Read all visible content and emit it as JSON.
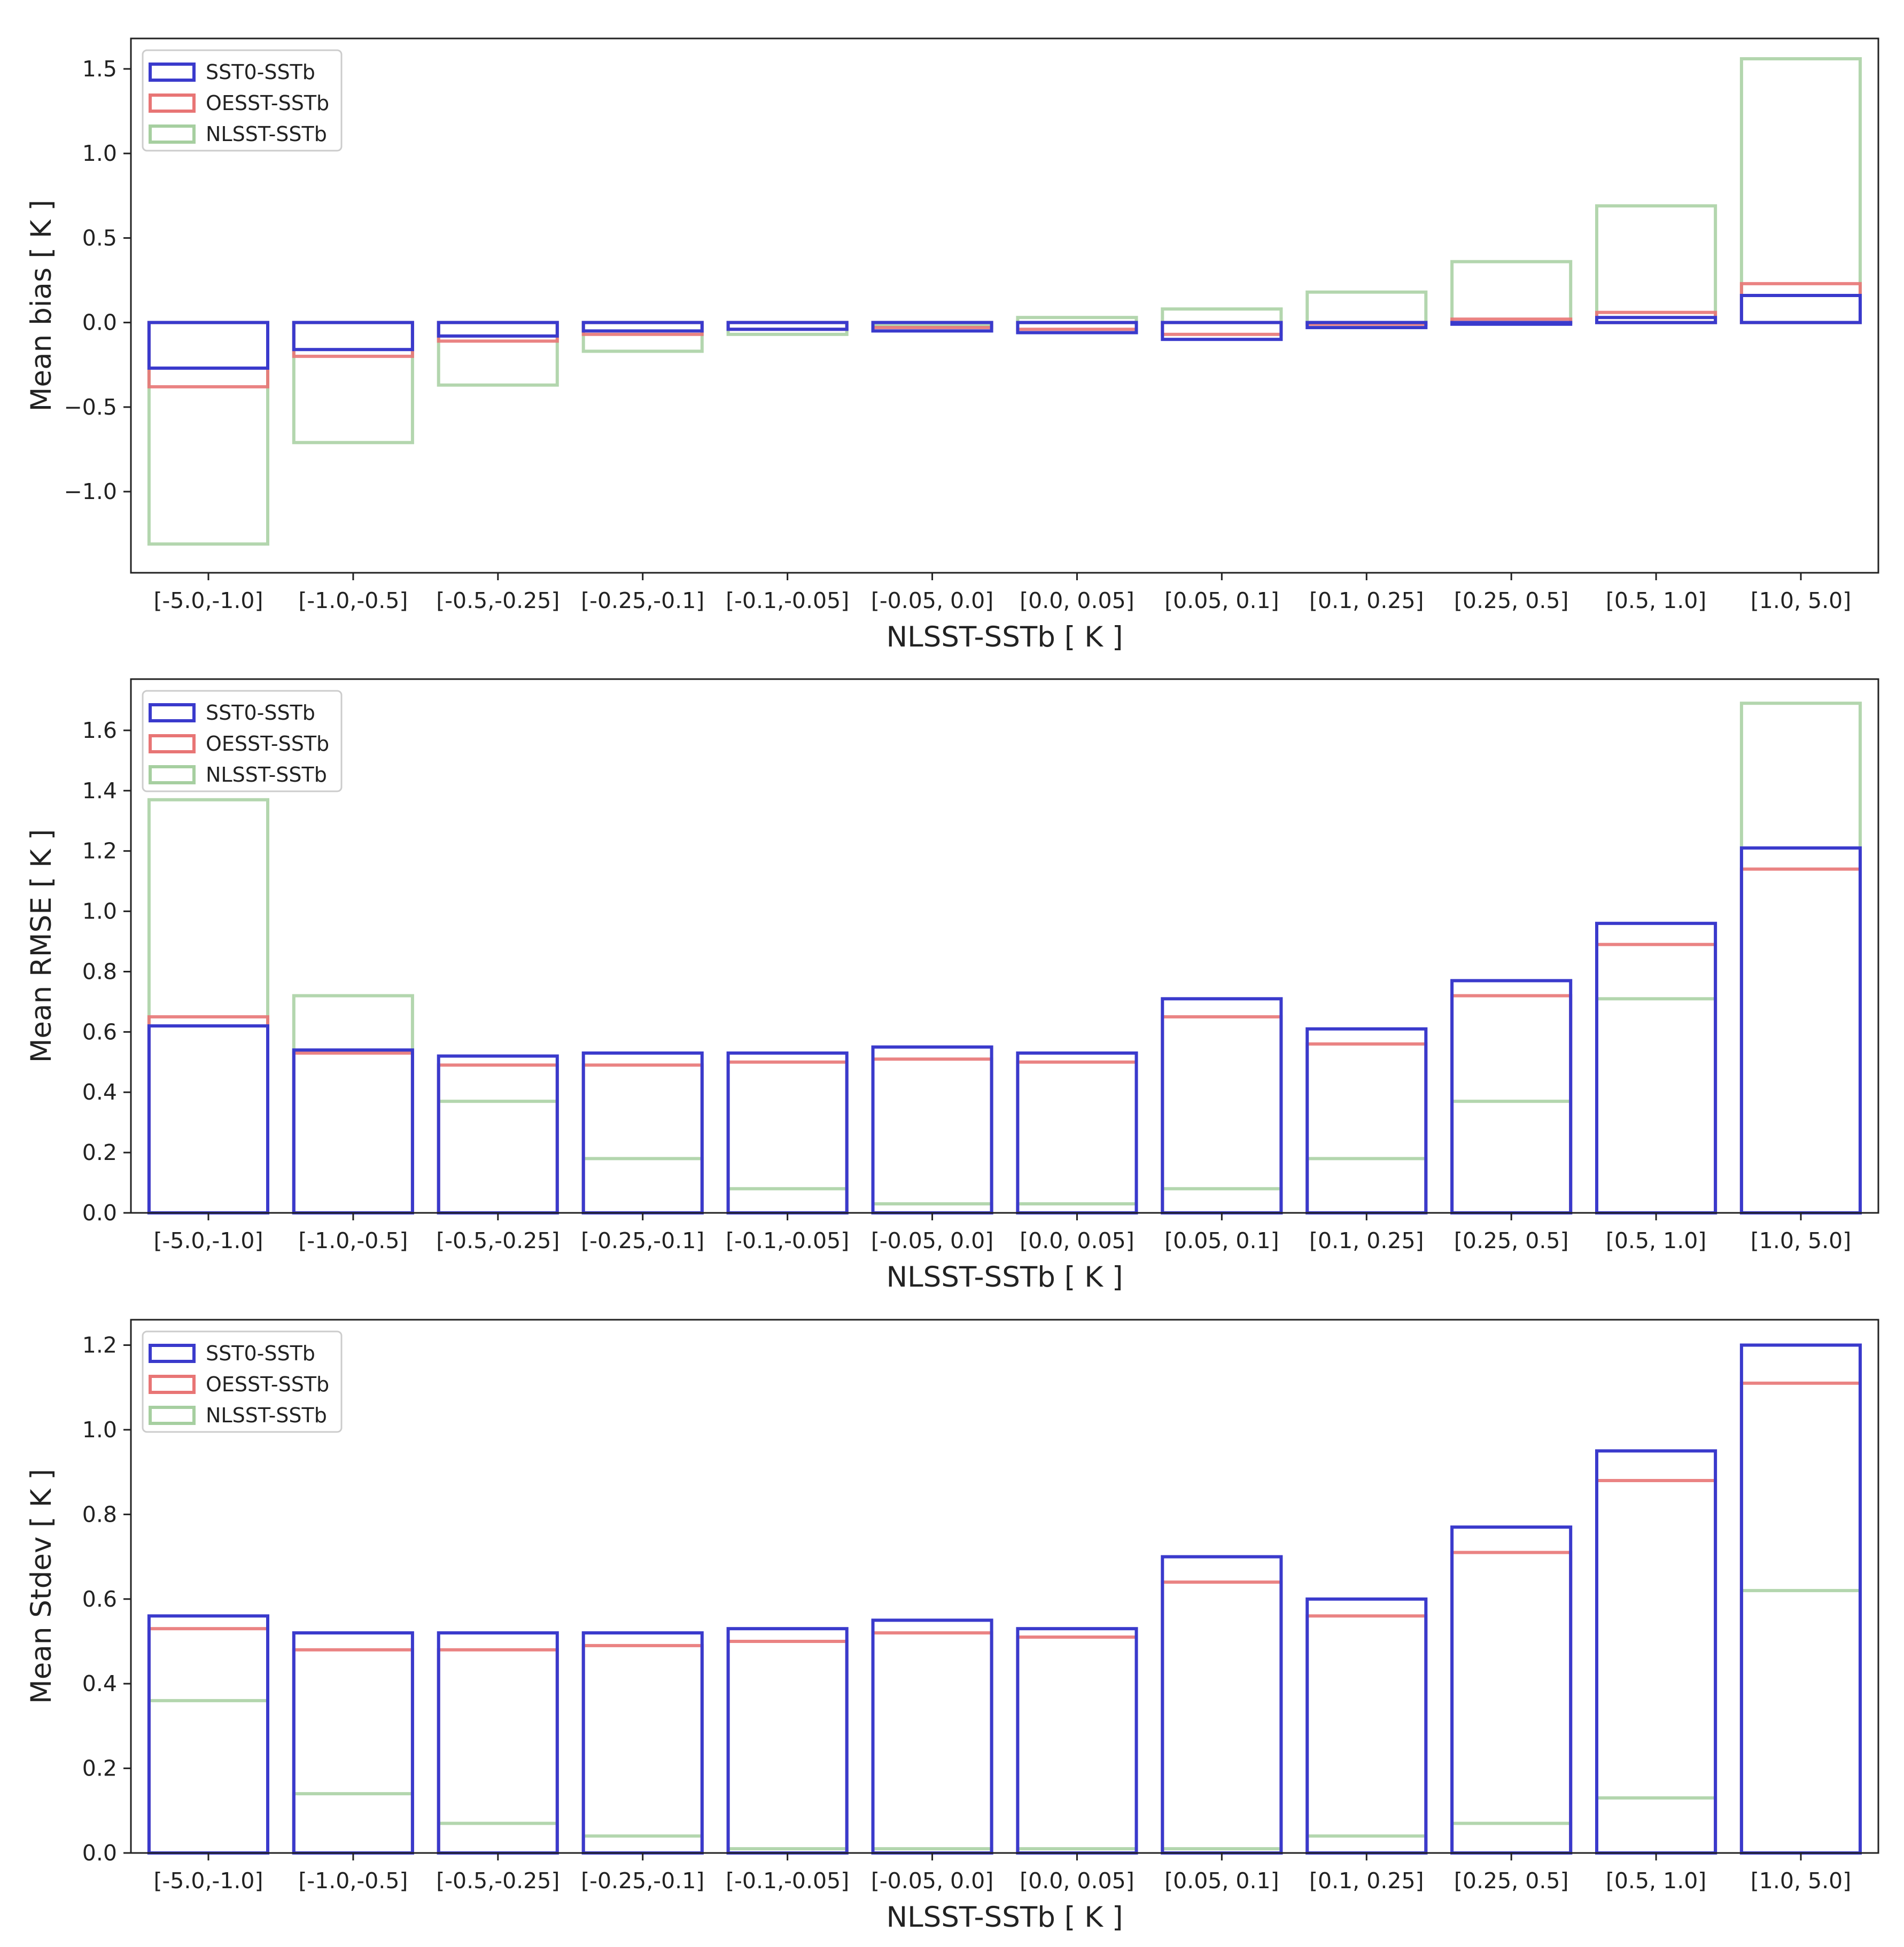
{
  "colors": {
    "SST0-SSTb": "#3a3acc",
    "OESST-SSTb": "#e87575",
    "NLSST-SSTb": "#a6cfa0",
    "axis": "#222222",
    "overlap": "#6e4a4a"
  },
  "chart_data": [
    {
      "type": "bar",
      "style": "overlapping-outline",
      "xlabel": "NLSST-SSTb [ K ]",
      "ylabel": "Mean bias [ K ]",
      "ylim": [
        -1.48,
        1.68
      ],
      "yticks": [
        -1.0,
        -0.5,
        0.0,
        0.5,
        1.0,
        1.5
      ],
      "ytick_labels": [
        "−1.0",
        "−0.5",
        "0.0",
        "0.5",
        "1.0",
        "1.5"
      ],
      "legend_position": "top-left",
      "categories": [
        "[-5.0,-1.0]",
        "[-1.0,-0.5]",
        "[-0.5,-0.25]",
        "[-0.25,-0.1]",
        "[-0.1,-0.05]",
        "[-0.05, 0.0]",
        "[0.0, 0.05]",
        "[0.05, 0.1]",
        "[0.1, 0.25]",
        "[0.25, 0.5]",
        "[0.5, 1.0]",
        "[1.0, 5.0]"
      ],
      "series": [
        {
          "name": "SST0-SSTb",
          "values": [
            -0.27,
            -0.16,
            -0.08,
            -0.05,
            -0.04,
            -0.05,
            -0.06,
            -0.1,
            -0.03,
            -0.01,
            0.03,
            0.16
          ]
        },
        {
          "name": "OESST-SSTb",
          "values": [
            -0.38,
            -0.2,
            -0.11,
            -0.07,
            -0.04,
            -0.03,
            -0.04,
            -0.07,
            -0.01,
            0.02,
            0.06,
            0.23
          ]
        },
        {
          "name": "NLSST-SSTb",
          "values": [
            -1.31,
            -0.71,
            -0.37,
            -0.17,
            -0.07,
            -0.02,
            0.03,
            0.08,
            0.18,
            0.36,
            0.69,
            1.56
          ]
        }
      ]
    },
    {
      "type": "bar",
      "style": "overlapping-outline",
      "xlabel": "NLSST-SSTb [ K ]",
      "ylabel": "Mean RMSE [ K ]",
      "ylim": [
        0.0,
        1.77
      ],
      "yticks": [
        0.0,
        0.2,
        0.4,
        0.6,
        0.8,
        1.0,
        1.2,
        1.4,
        1.6
      ],
      "ytick_labels": [
        "0.0",
        "0.2",
        "0.4",
        "0.6",
        "0.8",
        "1.0",
        "1.2",
        "1.4",
        "1.6"
      ],
      "legend_position": "top-left",
      "categories": [
        "[-5.0,-1.0]",
        "[-1.0,-0.5]",
        "[-0.5,-0.25]",
        "[-0.25,-0.1]",
        "[-0.1,-0.05]",
        "[-0.05, 0.0]",
        "[0.0, 0.05]",
        "[0.05, 0.1]",
        "[0.1, 0.25]",
        "[0.25, 0.5]",
        "[0.5, 1.0]",
        "[1.0, 5.0]"
      ],
      "series": [
        {
          "name": "SST0-SSTb",
          "values": [
            0.62,
            0.54,
            0.52,
            0.53,
            0.53,
            0.55,
            0.53,
            0.71,
            0.61,
            0.77,
            0.96,
            1.21
          ]
        },
        {
          "name": "OESST-SSTb",
          "values": [
            0.65,
            0.53,
            0.49,
            0.49,
            0.5,
            0.51,
            0.5,
            0.65,
            0.56,
            0.72,
            0.89,
            1.14
          ]
        },
        {
          "name": "NLSST-SSTb",
          "values": [
            1.37,
            0.72,
            0.37,
            0.18,
            0.08,
            0.03,
            0.03,
            0.08,
            0.18,
            0.37,
            0.71,
            1.69
          ]
        }
      ]
    },
    {
      "type": "bar",
      "style": "overlapping-outline",
      "xlabel": "NLSST-SSTb [ K ]",
      "ylabel": "Mean Stdev [ K ]",
      "ylim": [
        0.0,
        1.26
      ],
      "yticks": [
        0.0,
        0.2,
        0.4,
        0.6,
        0.8,
        1.0,
        1.2
      ],
      "ytick_labels": [
        "0.0",
        "0.2",
        "0.4",
        "0.6",
        "0.8",
        "1.0",
        "1.2"
      ],
      "legend_position": "top-left",
      "categories": [
        "[-5.0,-1.0]",
        "[-1.0,-0.5]",
        "[-0.5,-0.25]",
        "[-0.25,-0.1]",
        "[-0.1,-0.05]",
        "[-0.05, 0.0]",
        "[0.0, 0.05]",
        "[0.05, 0.1]",
        "[0.1, 0.25]",
        "[0.25, 0.5]",
        "[0.5, 1.0]",
        "[1.0, 5.0]"
      ],
      "series": [
        {
          "name": "SST0-SSTb",
          "values": [
            0.56,
            0.52,
            0.52,
            0.52,
            0.53,
            0.55,
            0.53,
            0.7,
            0.6,
            0.77,
            0.95,
            1.2
          ]
        },
        {
          "name": "OESST-SSTb",
          "values": [
            0.53,
            0.48,
            0.48,
            0.49,
            0.5,
            0.52,
            0.51,
            0.64,
            0.56,
            0.71,
            0.88,
            1.11
          ]
        },
        {
          "name": "NLSST-SSTb",
          "values": [
            0.36,
            0.14,
            0.07,
            0.04,
            0.01,
            0.01,
            0.01,
            0.01,
            0.04,
            0.07,
            0.13,
            0.62
          ]
        }
      ]
    }
  ]
}
